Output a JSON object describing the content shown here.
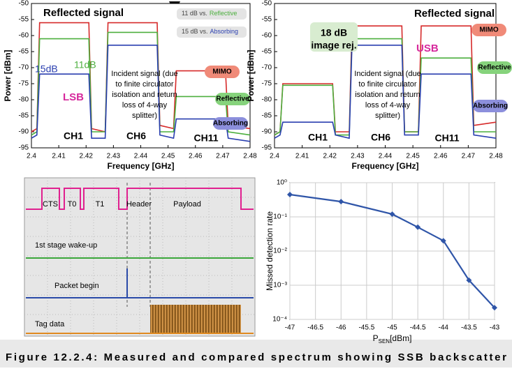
{
  "chart_data": [
    {
      "type": "line",
      "xlabel": "Frequency [GHz]",
      "ylabel": "Power [dBm]",
      "xlim": [
        2.4,
        2.48
      ],
      "xticks": [
        2.4,
        2.41,
        2.42,
        2.43,
        2.44,
        2.45,
        2.46,
        2.47,
        2.48
      ],
      "ylim": [
        -95,
        -50
      ],
      "yticks": [
        -95,
        -90,
        -85,
        -80,
        -75,
        -70,
        -65,
        -60,
        -55,
        -50
      ],
      "x": [
        2.4,
        2.402,
        2.403,
        2.421,
        2.422,
        2.427,
        2.428,
        2.446,
        2.447,
        2.452,
        2.453,
        2.471,
        2.472,
        2.48
      ],
      "legend": "right",
      "series": [
        {
          "name": "MIMO",
          "color": "#d62a2a",
          "label_color": "#f08a78",
          "values": [
            -90,
            -89,
            -56,
            -56,
            -89,
            -90,
            -56,
            -56,
            -88,
            -89,
            -71,
            -71,
            -88,
            -89
          ]
        },
        {
          "name": "Reflective",
          "color": "#4caf3e",
          "label_color": "#86d37c",
          "values": [
            -91,
            -90,
            -61,
            -61,
            -90,
            -90,
            -59,
            -59,
            -90,
            -90,
            -79,
            -79,
            -90,
            -91
          ]
        },
        {
          "name": "Absorbing",
          "color": "#2a3fb0",
          "label_color": "#8c8fdc",
          "values": [
            -92,
            -91,
            -72,
            -72,
            -92,
            -92,
            -63,
            -63,
            -91,
            -92,
            -86,
            -86,
            -92,
            -93
          ]
        }
      ],
      "annotations": [
        "Reflected signal",
        "15dB",
        "11dB",
        "LSB",
        "CH1",
        "CH6",
        "CH11"
      ],
      "incident_note": [
        "Incident signal (due",
        "to finite circulator",
        "isolation and return",
        "loss of 4-way",
        "splitter)"
      ],
      "comparisons": [
        {
          "text": "11 dB vs.",
          "ref": "Reflective"
        },
        {
          "text": "15 dB vs.",
          "ref": "Absorbing"
        }
      ]
    },
    {
      "type": "line",
      "xlabel": "Frequency [GHz]",
      "ylabel": "Power [dBm]",
      "xlim": [
        2.4,
        2.48
      ],
      "xticks": [
        2.4,
        2.41,
        2.42,
        2.43,
        2.44,
        2.45,
        2.46,
        2.47,
        2.48
      ],
      "ylim": [
        -95,
        -50
      ],
      "yticks": [
        -95,
        -90,
        -85,
        -80,
        -75,
        -70,
        -65,
        -60,
        -55,
        -50
      ],
      "x": [
        2.4,
        2.402,
        2.403,
        2.421,
        2.422,
        2.427,
        2.428,
        2.446,
        2.447,
        2.452,
        2.453,
        2.471,
        2.472,
        2.48
      ],
      "legend": "right",
      "series": [
        {
          "name": "MIMO",
          "color": "#d62a2a",
          "label_color": "#f08a78",
          "values": [
            -91,
            -90,
            -75,
            -75,
            -90,
            -90,
            -57,
            -57,
            -90,
            -90,
            -57,
            -57,
            -88,
            -87
          ]
        },
        {
          "name": "Reflective",
          "color": "#4caf3e",
          "label_color": "#86d37c",
          "values": [
            -91,
            -90,
            -75.5,
            -75.5,
            -91,
            -91,
            -61,
            -61,
            -90,
            -90,
            -67,
            -67,
            -90,
            -90
          ]
        },
        {
          "name": "Absorbing",
          "color": "#2a3fb0",
          "label_color": "#8c8fdc",
          "values": [
            -92,
            -91,
            -87,
            -87,
            -91,
            -92,
            -63,
            -63,
            -91,
            -91,
            -72,
            -72,
            -91,
            -92
          ]
        }
      ],
      "annotations": [
        "Reflected signal",
        "USB",
        "CH1",
        "CH6",
        "CH11"
      ],
      "incident_note": [
        "Incident signal (due",
        "to finite circulator",
        "isolation and return",
        "loss of 4-way",
        "splitter)"
      ],
      "image_rejection": [
        "18 dB",
        "image rej."
      ]
    },
    {
      "type": "logline",
      "ylabel": "Missed detection rate",
      "xlabel": {
        "main": "P",
        "sub": "SEN",
        "unit": "[dBm]"
      },
      "xlim": [
        -47,
        -43
      ],
      "xticks": [
        -47,
        -46.5,
        -46,
        -45.5,
        -45,
        -44.5,
        -44,
        -43.5,
        -43
      ],
      "log_y": true,
      "ylim": [
        0.0001,
        1
      ],
      "yticks": [
        {
          "value": 0.0001,
          "label": "10⁻⁴"
        },
        {
          "value": 0.001,
          "label": "10⁻³"
        },
        {
          "value": 0.01,
          "label": "10⁻²"
        },
        {
          "value": 0.1,
          "label": "10⁻¹"
        },
        {
          "value": 1,
          "label": "10⁰"
        }
      ],
      "grid": true,
      "color": "#2f55a8",
      "x": [
        -47,
        -46,
        -45,
        -44.5,
        -44,
        -43.5,
        -43
      ],
      "values": [
        0.45,
        0.28,
        0.12,
        0.05,
        0.02,
        0.0014,
        0.00022
      ]
    }
  ],
  "scope": {
    "pulse_labels": [
      "CTS",
      "T0",
      "T1",
      "Header",
      "Payload"
    ],
    "trace_labels": [
      "1st stage wake-up",
      "Packet begin",
      "Tag data"
    ]
  },
  "caption": "Figure 12.2.4: Measured and compared spectrum showing SSB backscatter"
}
